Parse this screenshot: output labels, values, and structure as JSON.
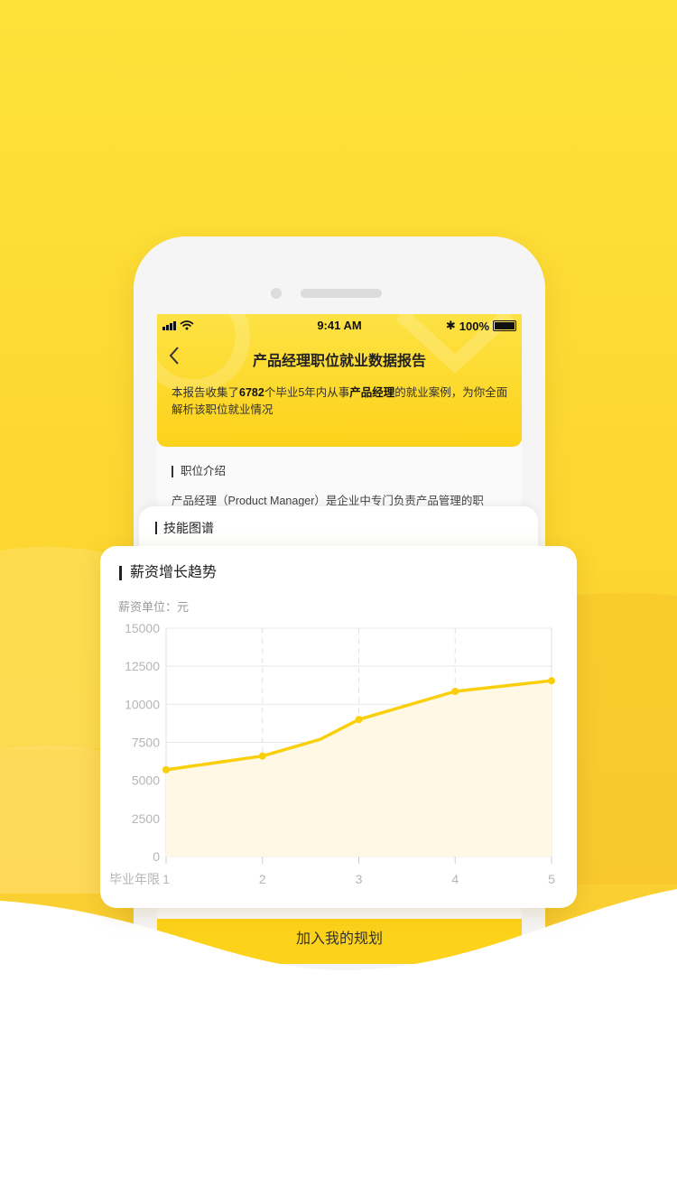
{
  "status_bar": {
    "time": "9:41 AM",
    "battery": "100%"
  },
  "nav": {
    "back_icon": "chevron-left-icon",
    "title": "产品经理职位就业数据报告"
  },
  "report": {
    "desc_prefix": "本报告收集了",
    "count": "6782",
    "desc_middle": "个毕业5年内从事",
    "job": "产品经理",
    "desc_suffix": "的就业案例，为你全面解析该职位就业情况"
  },
  "intro_section": {
    "title": "职位介绍",
    "text": "产品经理（Product Manager）是企业中专门负责产品管理的职"
  },
  "skill_card": {
    "title": "技能图谱"
  },
  "salary_card": {
    "title": "薪资增长趋势",
    "unit_label": "薪资单位：元"
  },
  "join_button": {
    "label": "加入我的规划"
  },
  "colors": {
    "accent": "#fdd21a",
    "line": "#f9cf0a",
    "area": "#fef8e4"
  },
  "chart_data": {
    "type": "area",
    "title": "薪资增长趋势",
    "xlabel": "毕业年限",
    "ylabel": "薪资单位：元",
    "x": [
      1,
      2,
      2.6,
      3,
      4,
      5
    ],
    "y": [
      5700,
      6600,
      7700,
      9000,
      10850,
      11550
    ],
    "marker_x": [
      1,
      2,
      3,
      4,
      5
    ],
    "marker_y": [
      5700,
      6600,
      9000,
      10850,
      11550
    ],
    "x_ticks": [
      "1",
      "2",
      "3",
      "4",
      "5"
    ],
    "y_ticks": [
      0,
      2500,
      5000,
      7500,
      10000,
      12500,
      15000
    ],
    "xlim": [
      1,
      5
    ],
    "ylim": [
      0,
      15000
    ],
    "grid": true
  }
}
